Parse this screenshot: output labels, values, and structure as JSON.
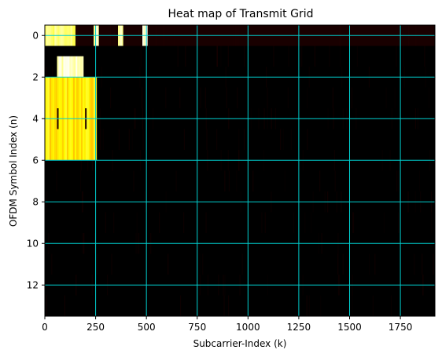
{
  "chart_data": {
    "type": "heatmap",
    "title": "Heat map of Transmit Grid",
    "xlabel": "Subcarrier-Index (k)",
    "ylabel": "OFDM Symbol Index (n)",
    "xlim": [
      0,
      1920
    ],
    "ylim": [
      13.5,
      -0.5
    ],
    "x_ticks": [
      0,
      250,
      500,
      750,
      1000,
      1250,
      1500,
      1750
    ],
    "y_ticks": [
      0,
      2,
      4,
      6,
      8,
      10,
      12
    ],
    "grid": true,
    "colormap": "hot",
    "background_value": 0.0,
    "regions": [
      {
        "k_start": 0,
        "k_end": 150,
        "n_start": 0,
        "n_end": 0,
        "value": 0.88
      },
      {
        "k_start": 240,
        "k_end": 265,
        "n_start": 0,
        "n_end": 0,
        "value": 0.92
      },
      {
        "k_start": 360,
        "k_end": 385,
        "n_start": 0,
        "n_end": 0,
        "value": 0.92
      },
      {
        "k_start": 480,
        "k_end": 505,
        "n_start": 0,
        "n_end": 0,
        "value": 0.92
      },
      {
        "k_start": 60,
        "k_end": 190,
        "n_start": 1.5,
        "n_end": 2.5,
        "value": 0.95
      },
      {
        "k_start": 0,
        "k_end": 255,
        "n_start": 2.5,
        "n_end": 5.5,
        "value": 0.72
      }
    ]
  },
  "colors": {
    "grid": "#00d0d0",
    "background": "#000000",
    "faint_noise": "#3a0000"
  }
}
